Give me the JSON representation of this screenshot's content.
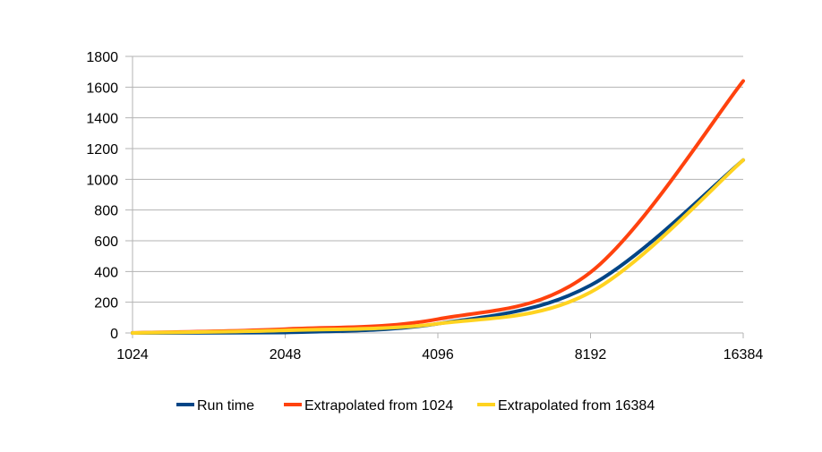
{
  "chart_data": {
    "type": "line",
    "title": "",
    "xlabel": "",
    "ylabel": "",
    "x_scale": "log2",
    "categories": [
      "1024",
      "2048",
      "4096",
      "8192",
      "16384"
    ],
    "x": [
      1024,
      2048,
      4096,
      8192,
      16384
    ],
    "ylim": [
      0,
      1800
    ],
    "yticks": [
      "0",
      "200",
      "400",
      "600",
      "800",
      "1000",
      "1200",
      "1400",
      "1600",
      "1800"
    ],
    "grid": "horizontal",
    "legend_position": "bottom",
    "series": [
      {
        "name": "Run time",
        "color": "#004586",
        "values": [
          0.3,
          3,
          60,
          310,
          1125
        ]
      },
      {
        "name": "Extrapolated from 1024",
        "color": "#ff420e",
        "values": [
          0.4,
          25,
          90,
          395,
          1640
        ]
      },
      {
        "name": "Extrapolated from 16384",
        "color": "#ffd320",
        "values": [
          0.3,
          17,
          60,
          265,
          1125
        ]
      }
    ]
  }
}
